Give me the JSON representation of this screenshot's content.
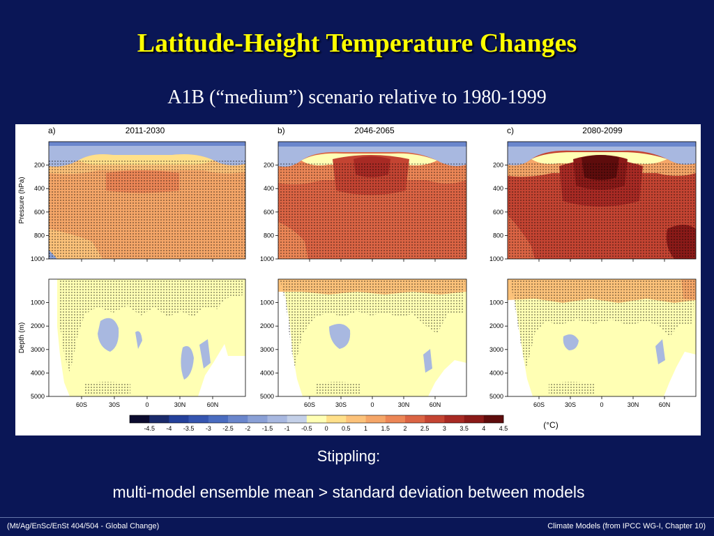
{
  "slide": {
    "title": "Latitude-Height Temperature Changes",
    "subtitle": "A1B (“medium”) scenario relative to 1980-1999",
    "stippling_heading": "Stippling:",
    "stippling_description": "multi-model ensemble mean > standard deviation between models",
    "footer_left": "(Mt/Ag/EnSc/EnSt 404/504 - Global Change)",
    "footer_right": "Climate Models  (from IPCC WG-I, Chapter 10)"
  },
  "figure": {
    "panels": [
      {
        "letter": "a)",
        "period": "2011-2030"
      },
      {
        "letter": "b)",
        "period": "2046-2065"
      },
      {
        "letter": "c)",
        "period": "2080-2099"
      }
    ],
    "atmosphere_ylabel": "Pressure (hPa)",
    "ocean_ylabel": "Depth (m)",
    "pressure_ticks": [
      "200",
      "400",
      "600",
      "800",
      "1000"
    ],
    "depth_ticks": [
      "1000",
      "2000",
      "3000",
      "4000",
      "5000"
    ],
    "lat_ticks": [
      "60S",
      "30S",
      "0",
      "30N",
      "60N"
    ],
    "colorbar": {
      "unit": "(°C)",
      "labels": [
        "-4.5",
        "-4",
        "-3.5",
        "-3",
        "-2.5",
        "-2",
        "-1.5",
        "-1",
        "-0.5",
        "0",
        "0.5",
        "1",
        "1.5",
        "2",
        "2.5",
        "3",
        "3.5",
        "4",
        "4.5"
      ],
      "colors": [
        "#0b0b2e",
        "#1a2a6a",
        "#24409a",
        "#3555b0",
        "#4a6cc0",
        "#6a86cc",
        "#8aa0d6",
        "#a8b8e0",
        "#c4d0e8",
        "#ffffb4",
        "#ffe08a",
        "#fcc27a",
        "#f5a668",
        "#ec8656",
        "#db6444",
        "#c44432",
        "#a82a24",
        "#8a1a18",
        "#5e0c0c"
      ]
    }
  }
}
